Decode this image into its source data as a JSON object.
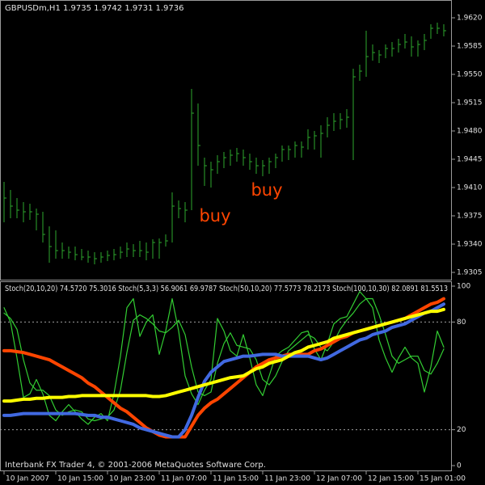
{
  "chart_data": [
    {
      "type": "ohlc",
      "title": "GBPUSDm,H1  1.9735 1.9742 1.9731 1.9736",
      "categories": [
        "10 Jan 2007",
        null,
        null,
        null,
        null,
        null,
        null,
        null,
        "10 Jan 15:00",
        null,
        null,
        null,
        null,
        null,
        null,
        null,
        "10 Jan 23:00",
        null,
        null,
        null,
        null,
        null,
        null,
        null,
        "11 Jan 07:00",
        null,
        null,
        null,
        null,
        null,
        null,
        null,
        "11 Jan 15:00",
        null,
        null,
        null,
        null,
        null,
        null,
        null,
        "11 Jan 23:00",
        null,
        null,
        null,
        null,
        null,
        null,
        null,
        "12 Jan 07:00",
        null,
        null,
        null,
        null,
        null,
        null,
        null,
        "12 Jan 15:00",
        null,
        null,
        null,
        null,
        null,
        null,
        null,
        "15 Jan 01:00",
        null,
        null,
        null,
        null
      ],
      "high": [
        1.9417,
        1.9407,
        1.9397,
        1.9392,
        1.939,
        1.9384,
        1.938,
        1.9362,
        1.9357,
        1.9342,
        1.9337,
        1.9337,
        1.9334,
        1.9332,
        1.933,
        1.933,
        1.9332,
        1.9334,
        1.9337,
        1.9342,
        1.934,
        1.9344,
        1.9342,
        1.9346,
        1.9347,
        1.9352,
        1.9404,
        1.9394,
        1.9392,
        1.9532,
        1.9514,
        1.9447,
        1.9442,
        1.945,
        1.9454,
        1.9457,
        1.9459,
        1.9457,
        1.9452,
        1.9447,
        1.9444,
        1.9447,
        1.9452,
        1.9462,
        1.9462,
        1.9467,
        1.9467,
        1.9482,
        1.948,
        1.9487,
        1.9497,
        1.9502,
        1.9502,
        1.9507,
        1.9557,
        1.9562,
        1.9604,
        1.9587,
        1.958,
        1.9587,
        1.959,
        1.9594,
        1.96,
        1.9597,
        1.9592,
        1.96,
        1.9612,
        1.9614,
        1.9612
      ],
      "low": [
        1.9367,
        1.9372,
        1.9372,
        1.9367,
        1.937,
        1.9357,
        1.9342,
        1.9317,
        1.9322,
        1.9322,
        1.9322,
        1.932,
        1.932,
        1.9317,
        1.9315,
        1.9317,
        1.9319,
        1.932,
        1.9322,
        1.9324,
        1.9324,
        1.9324,
        1.932,
        1.9322,
        1.9322,
        1.9337,
        1.9342,
        1.9372,
        1.9367,
        1.9382,
        1.9437,
        1.9412,
        1.941,
        1.9427,
        1.9434,
        1.9437,
        1.9442,
        1.9437,
        1.9432,
        1.9427,
        1.9424,
        1.9427,
        1.9434,
        1.9442,
        1.9444,
        1.9447,
        1.9447,
        1.9457,
        1.9457,
        1.9447,
        1.9472,
        1.948,
        1.9482,
        1.9484,
        1.9444,
        1.9542,
        1.9547,
        1.9567,
        1.9564,
        1.957,
        1.9572,
        1.9577,
        1.9582,
        1.9572,
        1.9572,
        1.958,
        1.9594,
        1.96,
        1.9597
      ],
      "close": [
        1.9397,
        1.9387,
        1.9382,
        1.938,
        1.938,
        1.9377,
        1.9352,
        1.9337,
        1.9332,
        1.9332,
        1.933,
        1.9327,
        1.9324,
        1.9324,
        1.9322,
        1.9324,
        1.9326,
        1.9327,
        1.933,
        1.9334,
        1.9332,
        1.9332,
        1.933,
        1.9342,
        1.9342,
        1.9344,
        1.9387,
        1.9384,
        1.9382,
        1.9502,
        1.9462,
        1.9437,
        1.9432,
        1.9442,
        1.9447,
        1.945,
        1.9452,
        1.9447,
        1.9442,
        1.9437,
        1.9437,
        1.9442,
        1.9447,
        1.9457,
        1.9457,
        1.9462,
        1.946,
        1.9472,
        1.9474,
        1.9477,
        1.9487,
        1.9492,
        1.9494,
        1.9497,
        1.9547,
        1.9554,
        1.9572,
        1.9577,
        1.9574,
        1.9582,
        1.9582,
        1.9587,
        1.959,
        1.9584,
        1.9587,
        1.9592,
        1.9607,
        1.9607,
        1.9604
      ],
      "color": "#2ea82e",
      "ylim": [
        1.9297,
        1.9642
      ],
      "yticks": [
        1.9305,
        {
          "value": 1.934,
          "label": "1.9340"
        },
        1.9375,
        {
          "value": 1.941,
          "label": "1.9410"
        },
        1.9445,
        {
          "value": 1.948,
          "label": "1.9480"
        },
        1.9515,
        {
          "value": 1.955,
          "label": "1.9550"
        },
        1.9585,
        {
          "value": 1.962,
          "label": "1.9620"
        }
      ],
      "annotations": [
        "buy",
        "buy"
      ],
      "annotation_color": "#ff4500"
    },
    {
      "type": "line",
      "title": "Stoch(20,10,20) 74.5720 75.3016  Stoch(5,3,3) 56.9061 69.9787  Stoch(50,10,20) 77.5773 78.2173  Stoch(100,10,30) 82.0891 81.5513",
      "ylim": [
        -2.7,
        102.7
      ],
      "yticks": [
        0,
        20,
        80,
        100
      ],
      "levels": [
        20,
        80
      ],
      "series": [
        {
          "color": "#32cd32",
          "width": 1.2,
          "values": [
            88,
            80,
            60,
            38,
            40,
            48,
            40,
            28,
            25,
            30,
            34,
            30,
            26,
            23,
            27,
            29,
            25,
            40,
            61,
            88,
            93,
            72,
            80,
            84,
            62,
            75,
            93,
            75,
            50,
            40,
            34,
            42,
            48,
            82,
            75,
            64,
            61,
            73,
            60,
            45,
            39,
            50,
            61,
            64,
            66,
            70,
            74,
            75,
            65,
            59,
            68,
            79,
            82,
            83,
            90,
            97,
            93,
            88,
            70,
            60,
            52,
            60,
            66,
            60,
            57,
            41,
            55,
            75,
            66
          ]
        },
        {
          "color": "#32cd32",
          "width": 1.2,
          "values": [
            85,
            82,
            76,
            59,
            46,
            42,
            42,
            39,
            31,
            28,
            30,
            31,
            30,
            26,
            25,
            26,
            27,
            31,
            42,
            63,
            81,
            84,
            82,
            79,
            75,
            74,
            77,
            81,
            73,
            55,
            41,
            39,
            41,
            57,
            68,
            74,
            67,
            66,
            65,
            59,
            48,
            45,
            50,
            58,
            64,
            67,
            70,
            73,
            71,
            66,
            64,
            69,
            76,
            81,
            85,
            90,
            93,
            93,
            84,
            73,
            61,
            57,
            59,
            61,
            61,
            53,
            51,
            57,
            65
          ]
        },
        {
          "color": "#ff4500",
          "width": 4,
          "values": [
            64,
            64,
            63.5,
            63,
            62,
            61,
            60,
            59,
            57,
            55,
            53,
            51,
            49,
            46,
            44,
            41,
            38,
            35,
            32,
            30,
            27,
            24,
            21,
            19,
            17,
            16,
            16,
            16,
            16,
            22,
            28,
            32,
            35,
            37,
            40,
            43,
            46,
            49,
            52,
            55,
            57,
            59,
            60,
            61,
            62,
            62,
            62,
            62,
            64,
            65,
            67,
            69,
            71,
            72,
            74,
            75,
            76,
            77,
            78,
            79,
            80,
            81,
            82,
            84,
            86,
            88,
            90,
            91,
            93
          ]
        },
        {
          "color": "#4169e1",
          "width": 4,
          "values": [
            28,
            28,
            28.5,
            29,
            29,
            29,
            29,
            29,
            29,
            29,
            29,
            29,
            28.5,
            28,
            28,
            27,
            27,
            26,
            25,
            24,
            23,
            21,
            20,
            19,
            18,
            17,
            16,
            16,
            20,
            28,
            38,
            47,
            52,
            55,
            58,
            59,
            60,
            61,
            61,
            61.5,
            62,
            62,
            62,
            61,
            61,
            61,
            61,
            61,
            60,
            59,
            60,
            62,
            64,
            66,
            68,
            70,
            71,
            73,
            74,
            75,
            77,
            78,
            79,
            81,
            83,
            85,
            86,
            88,
            90
          ]
        },
        {
          "color": "#ffff00",
          "width": 4,
          "values": [
            36,
            36,
            36.5,
            37,
            37,
            37.5,
            37.5,
            38,
            38,
            38,
            38.5,
            38.5,
            39,
            39,
            39,
            39,
            39,
            39,
            39,
            39,
            39,
            39,
            39,
            38.5,
            38.5,
            39,
            40,
            41,
            42,
            43,
            44,
            45,
            46,
            47,
            48,
            49,
            49.5,
            50,
            52,
            54,
            55,
            57,
            58,
            59,
            61,
            63,
            64,
            66,
            67,
            68,
            69,
            71,
            72,
            73,
            74,
            75,
            76,
            77,
            78,
            79,
            80,
            81,
            82,
            83,
            84,
            85,
            86,
            86,
            87
          ]
        }
      ]
    }
  ],
  "footer": "Interbank FX Trader 4, © 2001-2006 MetaQuotes Software Corp."
}
